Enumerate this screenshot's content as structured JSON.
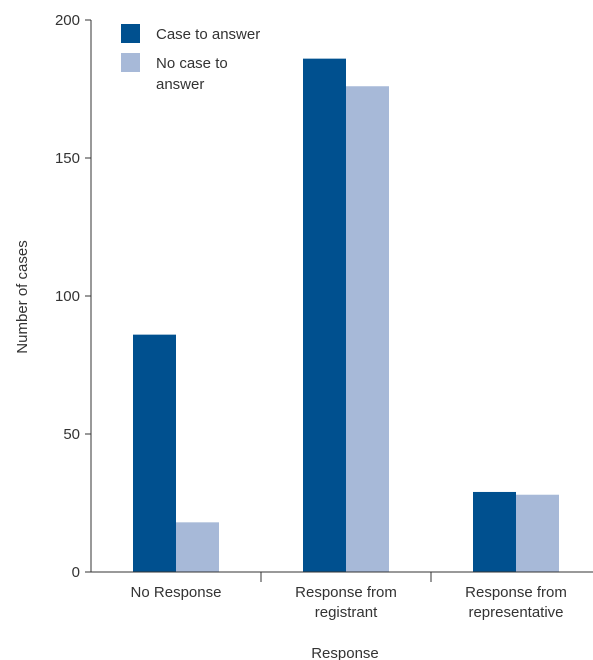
{
  "chart_data": {
    "type": "bar",
    "categories": [
      [
        "No Response"
      ],
      [
        "Response from",
        "registrant"
      ],
      [
        "Response from",
        "representative"
      ]
    ],
    "series": [
      {
        "name": [
          "Case to answer"
        ],
        "values": [
          86,
          186,
          29
        ],
        "color": "#00508f"
      },
      {
        "name": [
          "No case to",
          "answer"
        ],
        "values": [
          18,
          176,
          28
        ],
        "color": "#a7b9d8"
      }
    ],
    "xlabel": "Response",
    "ylabel": "Number of cases",
    "ylim": [
      0,
      200
    ],
    "yticks": [
      0,
      50,
      100,
      150,
      200
    ],
    "grid": false,
    "legend_position": "top-left"
  }
}
